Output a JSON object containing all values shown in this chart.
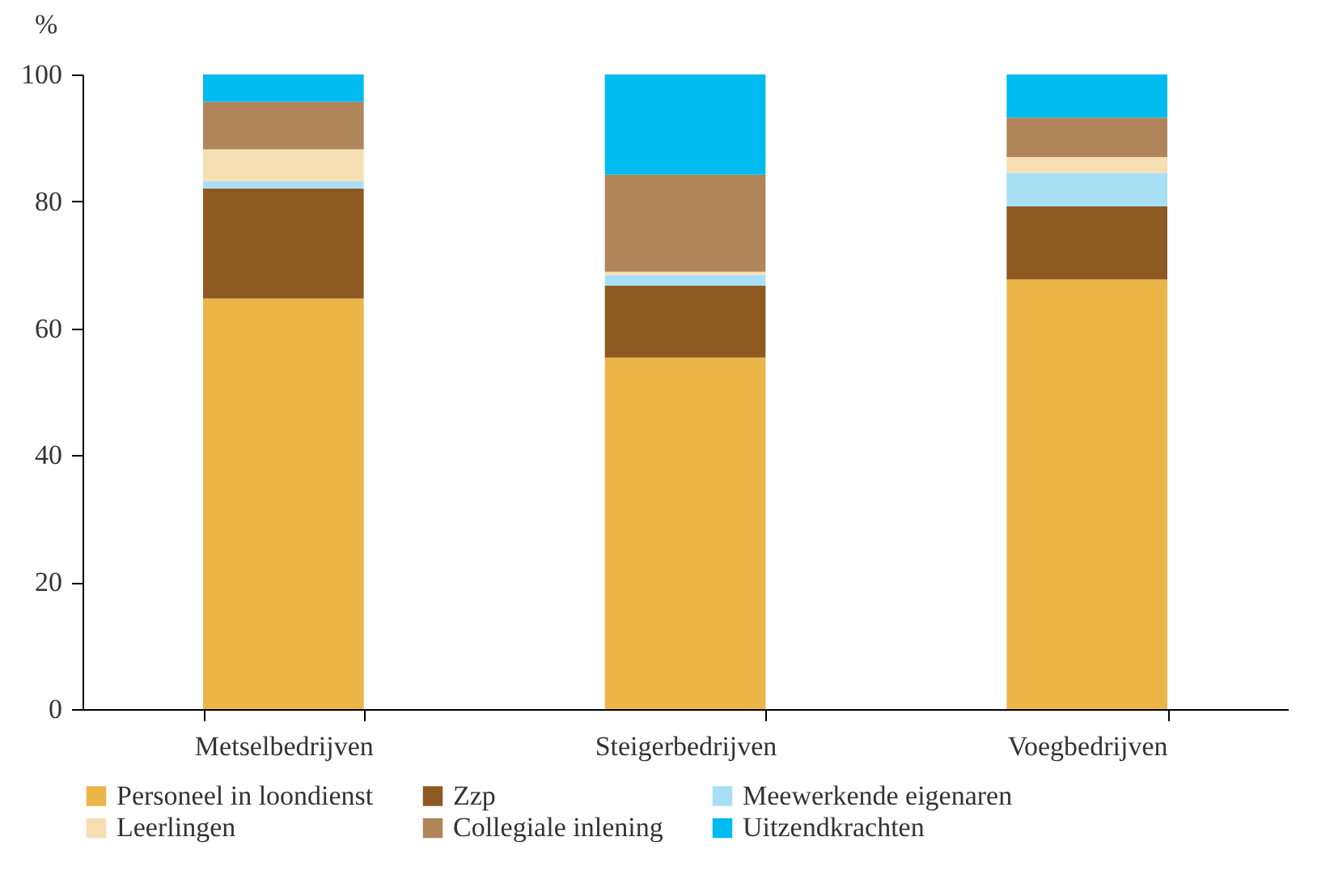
{
  "chart_data": {
    "type": "bar",
    "stacked": true,
    "ylabel": "%",
    "categories": [
      "Metselbedrijven",
      "Steigerbedrijven",
      "Voegbedrijven"
    ],
    "series": [
      {
        "name": "Personeel in loondienst",
        "color": "#ecb548",
        "values": [
          64.7,
          55.4,
          67.7
        ]
      },
      {
        "name": "Zzp",
        "color": "#8d5a22",
        "values": [
          17.3,
          11.3,
          11.5
        ]
      },
      {
        "name": "Meewerkende eigenaren",
        "color": "#a9dff5",
        "values": [
          1.2,
          1.7,
          5.3
        ]
      },
      {
        "name": "Leerlingen",
        "color": "#f7dfb4",
        "values": [
          5.0,
          0.5,
          2.5
        ]
      },
      {
        "name": "Collegiale inlening",
        "color": "#b0855a",
        "values": [
          7.5,
          15.3,
          6.2
        ]
      },
      {
        "name": "Uitzendkrachten",
        "color": "#00bbf0",
        "values": [
          4.3,
          15.8,
          6.8
        ]
      }
    ],
    "ylim": [
      0,
      100
    ],
    "yticks": [
      0,
      20,
      40,
      60,
      80,
      100
    ],
    "grid": false,
    "legend": "bottom"
  }
}
